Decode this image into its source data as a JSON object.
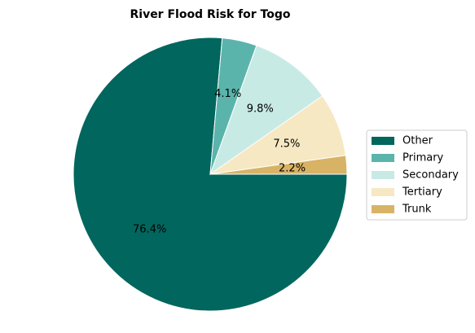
{
  "chart_data": {
    "type": "pie",
    "title": "River Flood Risk for Togo",
    "categories": [
      "Other",
      "Primary",
      "Secondary",
      "Tertiary",
      "Trunk"
    ],
    "values": [
      76.4,
      4.1,
      9.8,
      7.5,
      2.2
    ],
    "labels": [
      "76.4%",
      "4.1%",
      "9.8%",
      "7.5%",
      "2.2%"
    ],
    "colors": [
      "#01665e",
      "#5ab4ac",
      "#c7eae5",
      "#f6e8c3",
      "#d8b365"
    ],
    "start_angle_deg": 0,
    "direction": "clockwise",
    "legend_position": "center-right",
    "slice_edge_color": "#ffffff"
  }
}
